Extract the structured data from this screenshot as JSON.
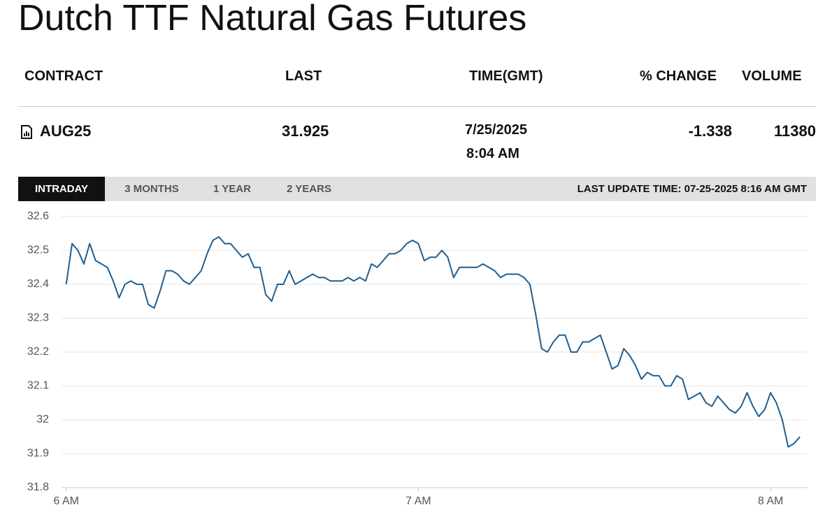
{
  "header": {
    "title": "Dutch TTF Natural Gas Futures"
  },
  "table": {
    "columns": [
      "CONTRACT",
      "LAST",
      "TIME(GMT)",
      "% CHANGE",
      "VOLUME"
    ],
    "rows": [
      {
        "contract": "AUG25",
        "last": "31.925",
        "date": "7/25/2025",
        "time": "8:04 AM",
        "change": "-1.338",
        "volume": "11380"
      }
    ]
  },
  "tabs": [
    "INTRADAY",
    "3 MONTHS",
    "1 YEAR",
    "2 YEARS"
  ],
  "active_tab": 0,
  "last_update": "LAST UPDATE TIME: 07-25-2025 8:16 AM GMT",
  "chart_data": {
    "type": "line",
    "color": "#1f5f8f",
    "grid": true,
    "x": [
      360,
      361,
      362,
      363,
      364,
      365,
      366,
      367,
      368,
      369,
      370,
      371,
      372,
      373,
      374,
      375,
      376,
      377,
      378,
      379,
      380,
      381,
      382,
      383,
      384,
      385,
      386,
      387,
      388,
      389,
      390,
      391,
      392,
      393,
      394,
      395,
      396,
      397,
      398,
      399,
      400,
      401,
      402,
      403,
      404,
      405,
      406,
      407,
      408,
      409,
      410,
      411,
      412,
      413,
      414,
      415,
      416,
      417,
      418,
      419,
      420,
      421,
      422,
      423,
      424,
      425,
      426,
      427,
      428,
      429,
      430,
      431,
      432,
      433,
      434,
      435,
      436,
      437,
      438,
      439,
      440,
      441,
      442,
      443,
      444,
      445,
      446,
      447,
      448,
      449,
      450,
      451,
      452,
      453,
      454,
      455,
      456,
      457,
      458,
      459,
      460,
      461,
      462,
      463,
      464,
      465,
      466,
      467,
      468,
      469,
      470,
      471,
      472,
      473,
      474,
      475,
      476,
      477,
      478,
      479,
      480,
      481,
      482,
      483,
      484,
      485
    ],
    "values": [
      32.4,
      32.52,
      32.5,
      32.46,
      32.52,
      32.47,
      32.46,
      32.45,
      32.41,
      32.36,
      32.4,
      32.41,
      32.4,
      32.4,
      32.34,
      32.33,
      32.38,
      32.44,
      32.44,
      32.43,
      32.41,
      32.4,
      32.42,
      32.44,
      32.49,
      32.53,
      32.54,
      32.52,
      32.52,
      32.5,
      32.48,
      32.49,
      32.45,
      32.45,
      32.37,
      32.35,
      32.4,
      32.4,
      32.44,
      32.4,
      32.41,
      32.42,
      32.43,
      32.42,
      32.42,
      32.41,
      32.41,
      32.41,
      32.42,
      32.41,
      32.42,
      32.41,
      32.46,
      32.45,
      32.47,
      32.49,
      32.49,
      32.5,
      32.52,
      32.53,
      32.52,
      32.47,
      32.48,
      32.48,
      32.5,
      32.48,
      32.42,
      32.45,
      32.45,
      32.45,
      32.45,
      32.46,
      32.45,
      32.44,
      32.42,
      32.43,
      32.43,
      32.43,
      32.42,
      32.4,
      32.31,
      32.21,
      32.2,
      32.23,
      32.25,
      32.25,
      32.2,
      32.2,
      32.23,
      32.23,
      32.24,
      32.25,
      32.2,
      32.15,
      32.16,
      32.21,
      32.19,
      32.16,
      32.12,
      32.14,
      32.13,
      32.13,
      32.1,
      32.1,
      32.13,
      32.12,
      32.06,
      32.07,
      32.08,
      32.05,
      32.04,
      32.07,
      32.05,
      32.03,
      32.02,
      32.04,
      32.08,
      32.04,
      32.01,
      32.03,
      32.08,
      32.05,
      32.0,
      31.92,
      31.93,
      31.95
    ],
    "xlim": [
      359.2,
      486.3
    ],
    "xticks": [
      {
        "value": 360,
        "label": "6 AM"
      },
      {
        "value": 420,
        "label": "7 AM"
      },
      {
        "value": 480,
        "label": "8 AM"
      }
    ],
    "ylim": [
      31.8,
      32.6
    ],
    "yticks": [
      31.8,
      31.9,
      32,
      32.1,
      32.2,
      32.3,
      32.4,
      32.5,
      32.6
    ]
  }
}
